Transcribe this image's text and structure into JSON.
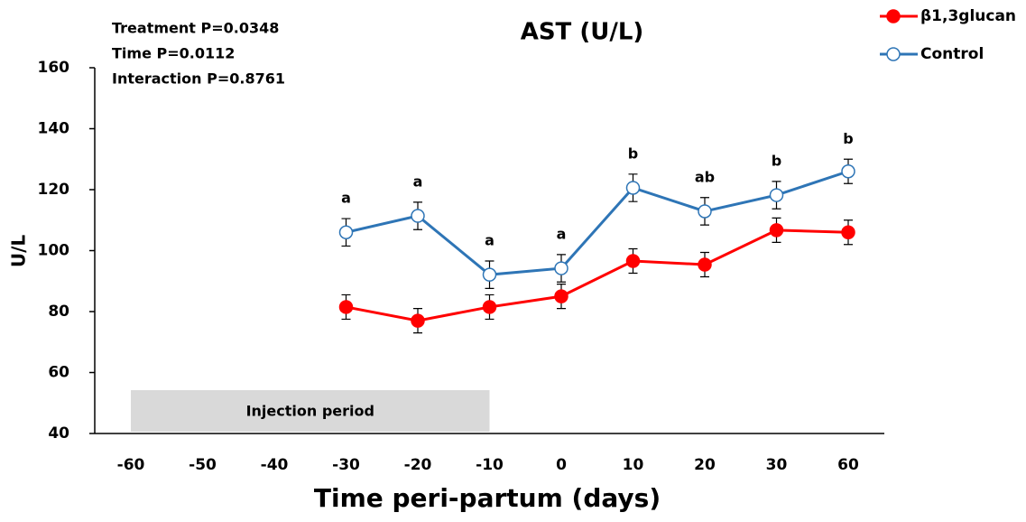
{
  "chart_data": {
    "type": "line",
    "title": "AST (U/L)",
    "x_label": "Time peri-partum (days)",
    "y_label": "U/L",
    "stats": [
      "Treatment P=0.0348",
      "Time P=0.0112",
      "Interaction P=0.8761"
    ],
    "categories": [
      "-60",
      "-50",
      "-40",
      "-30",
      "-20",
      "-10",
      "0",
      "10",
      "20",
      "30",
      "60"
    ],
    "series": [
      {
        "name": "β1,3glucan",
        "color": "#ff0000",
        "marker": "filled",
        "values": [
          null,
          null,
          null,
          81.5,
          77,
          81.5,
          85,
          96.6,
          95.4,
          106.7,
          106
        ],
        "errors": [
          null,
          null,
          null,
          4,
          4,
          4,
          4,
          4,
          4,
          4,
          4
        ]
      },
      {
        "name": "Control",
        "color": "#2e75b6",
        "marker": "open",
        "values": [
          null,
          null,
          null,
          106,
          111.4,
          92.1,
          94.2,
          120.6,
          112.9,
          118.2,
          126
        ],
        "errors": [
          null,
          null,
          null,
          4.5,
          4.5,
          4.5,
          4.5,
          4.5,
          4.5,
          4.5,
          4
        ]
      }
    ],
    "significance_labels": [
      null,
      null,
      null,
      "a",
      "a",
      "a",
      "a",
      "b",
      "ab",
      "b",
      "b"
    ],
    "shaded_region": {
      "label": "Injection period",
      "from": "-60",
      "to": "-10",
      "color": "#d9d9d9"
    },
    "ylim": [
      40,
      160
    ],
    "yticks": [
      40,
      60,
      80,
      100,
      120,
      140,
      160
    ],
    "grid": false,
    "legend": "top-right"
  }
}
